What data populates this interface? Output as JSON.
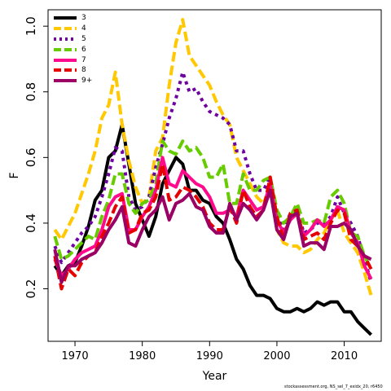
{
  "chart_data": {
    "type": "line",
    "xlabel": "Year",
    "ylabel": "F",
    "xlim": [
      1966,
      2015.5
    ],
    "ylim": [
      0.04,
      1.05
    ],
    "x_ticks": [
      1970,
      1980,
      1990,
      2000,
      2010
    ],
    "x_tick_labels": [
      "1970",
      "1980",
      "1990",
      "2000",
      "2010"
    ],
    "y_ticks": [
      0.2,
      0.4,
      0.6,
      0.8,
      1.0
    ],
    "y_tick_labels": [
      "0.2",
      "0.4",
      "0.6",
      "0.8",
      "1.0"
    ],
    "grid": false,
    "legend_position": "top-left",
    "x": [
      1967,
      1968,
      1969,
      1970,
      1971,
      1972,
      1973,
      1974,
      1975,
      1976,
      1977,
      1978,
      1979,
      1980,
      1981,
      1982,
      1983,
      1984,
      1985,
      1986,
      1987,
      1988,
      1989,
      1990,
      1991,
      1992,
      1993,
      1994,
      1995,
      1996,
      1997,
      1998,
      1999,
      2000,
      2001,
      2002,
      2003,
      2004,
      2005,
      2006,
      2007,
      2008,
      2009,
      2010,
      2011,
      2012,
      2013,
      2014
    ],
    "series": [
      {
        "name": "3",
        "color": "#000000",
        "dash": "solid",
        "values": [
          0.27,
          0.24,
          0.27,
          0.28,
          0.33,
          0.39,
          0.47,
          0.5,
          0.6,
          0.62,
          0.7,
          0.58,
          0.46,
          0.41,
          0.36,
          0.42,
          0.52,
          0.56,
          0.6,
          0.58,
          0.5,
          0.5,
          0.47,
          0.46,
          0.42,
          0.4,
          0.35,
          0.29,
          0.26,
          0.21,
          0.18,
          0.18,
          0.17,
          0.14,
          0.13,
          0.13,
          0.14,
          0.13,
          0.14,
          0.16,
          0.15,
          0.16,
          0.16,
          0.13,
          0.13,
          0.1,
          0.08,
          0.06
        ]
      },
      {
        "name": "4",
        "color": "#FFC800",
        "dash": "dashed",
        "values": [
          0.38,
          0.35,
          0.39,
          0.43,
          0.49,
          0.55,
          0.62,
          0.72,
          0.76,
          0.86,
          0.7,
          0.59,
          0.51,
          0.46,
          0.48,
          0.62,
          0.66,
          0.82,
          0.95,
          1.02,
          0.91,
          0.88,
          0.85,
          0.82,
          0.77,
          0.73,
          0.7,
          0.6,
          0.56,
          0.52,
          0.48,
          0.46,
          0.51,
          0.38,
          0.34,
          0.33,
          0.33,
          0.31,
          0.32,
          0.35,
          0.37,
          0.41,
          0.44,
          0.37,
          0.34,
          0.31,
          0.25,
          0.18
        ]
      },
      {
        "name": "5",
        "color": "#6E00A0",
        "dash": "dotted",
        "values": [
          0.33,
          0.28,
          0.31,
          0.34,
          0.37,
          0.39,
          0.42,
          0.48,
          0.55,
          0.63,
          0.62,
          0.48,
          0.44,
          0.45,
          0.48,
          0.57,
          0.64,
          0.72,
          0.78,
          0.86,
          0.8,
          0.81,
          0.77,
          0.74,
          0.73,
          0.72,
          0.7,
          0.62,
          0.62,
          0.55,
          0.5,
          0.5,
          0.54,
          0.42,
          0.38,
          0.43,
          0.44,
          0.37,
          0.38,
          0.4,
          0.4,
          0.42,
          0.48,
          0.43,
          0.4,
          0.36,
          0.29,
          0.22
        ]
      },
      {
        "name": "6",
        "color": "#66CC00",
        "dash": "dashed",
        "values": [
          0.36,
          0.29,
          0.3,
          0.32,
          0.34,
          0.36,
          0.35,
          0.42,
          0.47,
          0.55,
          0.55,
          0.46,
          0.43,
          0.46,
          0.47,
          0.52,
          0.65,
          0.62,
          0.61,
          0.65,
          0.62,
          0.63,
          0.6,
          0.54,
          0.54,
          0.58,
          0.46,
          0.46,
          0.55,
          0.5,
          0.5,
          0.53,
          0.54,
          0.44,
          0.4,
          0.42,
          0.46,
          0.4,
          0.4,
          0.41,
          0.4,
          0.48,
          0.5,
          0.46,
          0.37,
          0.36,
          0.3,
          0.26
        ]
      },
      {
        "name": "7",
        "color": "#FF0A8C",
        "dash": "solid",
        "values": [
          0.29,
          0.24,
          0.26,
          0.29,
          0.31,
          0.32,
          0.33,
          0.38,
          0.45,
          0.48,
          0.49,
          0.38,
          0.38,
          0.42,
          0.45,
          0.5,
          0.6,
          0.52,
          0.51,
          0.56,
          0.54,
          0.52,
          0.51,
          0.48,
          0.43,
          0.43,
          0.44,
          0.42,
          0.5,
          0.47,
          0.44,
          0.45,
          0.52,
          0.41,
          0.37,
          0.41,
          0.43,
          0.36,
          0.38,
          0.41,
          0.39,
          0.41,
          0.45,
          0.44,
          0.37,
          0.34,
          0.27,
          0.23
        ]
      },
      {
        "name": "8",
        "color": "#E60000",
        "dash": "dashed",
        "values": [
          0.3,
          0.2,
          0.26,
          0.24,
          0.28,
          0.3,
          0.31,
          0.36,
          0.4,
          0.45,
          0.48,
          0.37,
          0.38,
          0.43,
          0.44,
          0.48,
          0.58,
          0.47,
          0.48,
          0.51,
          0.5,
          0.48,
          0.45,
          0.4,
          0.38,
          0.38,
          0.45,
          0.4,
          0.5,
          0.45,
          0.42,
          0.44,
          0.54,
          0.42,
          0.35,
          0.43,
          0.44,
          0.35,
          0.36,
          0.37,
          0.35,
          0.4,
          0.44,
          0.43,
          0.35,
          0.33,
          0.3,
          0.26
        ]
      },
      {
        "name": "9+",
        "color": "#9B0064",
        "dash": "solid",
        "values": [
          0.32,
          0.22,
          0.27,
          0.27,
          0.29,
          0.3,
          0.31,
          0.34,
          0.38,
          0.41,
          0.45,
          0.34,
          0.33,
          0.38,
          0.42,
          0.44,
          0.48,
          0.41,
          0.46,
          0.47,
          0.49,
          0.45,
          0.44,
          0.39,
          0.37,
          0.37,
          0.46,
          0.41,
          0.46,
          0.44,
          0.41,
          0.44,
          0.5,
          0.38,
          0.35,
          0.42,
          0.43,
          0.33,
          0.34,
          0.34,
          0.32,
          0.39,
          0.39,
          0.4,
          0.38,
          0.33,
          0.3,
          0.29
        ]
      }
    ]
  },
  "footnote": "stockassessment.org, NS_sel_7_exidx_20, r6450"
}
